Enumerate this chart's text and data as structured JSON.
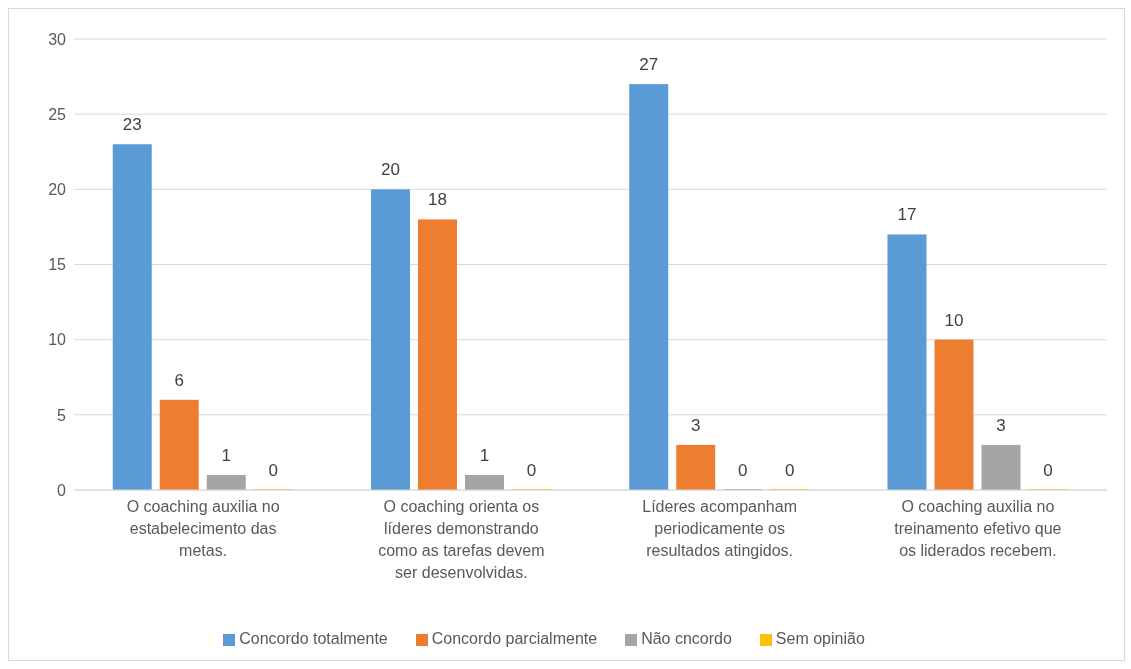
{
  "chart_data": {
    "type": "bar",
    "categories": [
      "O coaching auxilia no estabelecimento das metas.",
      "O coaching orienta os líderes demonstrando como as tarefas devem ser desenvolvidas.",
      "Líderes acompanham periodicamente os resultados atingidos.",
      "O coaching auxilia no treinamento efetivo que os liderados recebem."
    ],
    "series": [
      {
        "name": "Concordo totalmente",
        "color": "#5b9bd5",
        "values": [
          23,
          20,
          27,
          17
        ]
      },
      {
        "name": "Concordo parcialmente",
        "color": "#ed7d31",
        "values": [
          6,
          18,
          3,
          10
        ]
      },
      {
        "name": "Não cncordo",
        "color": "#a5a5a5",
        "values": [
          1,
          1,
          0,
          3
        ]
      },
      {
        "name": "Sem opinião",
        "color": "#ffc000",
        "values": [
          0,
          0,
          0,
          0
        ]
      }
    ],
    "ylim": [
      0,
      30
    ],
    "yticks": [
      0,
      5,
      10,
      15,
      20,
      25,
      30
    ],
    "grid": "y",
    "legend": "bottom",
    "data_labels": true
  }
}
